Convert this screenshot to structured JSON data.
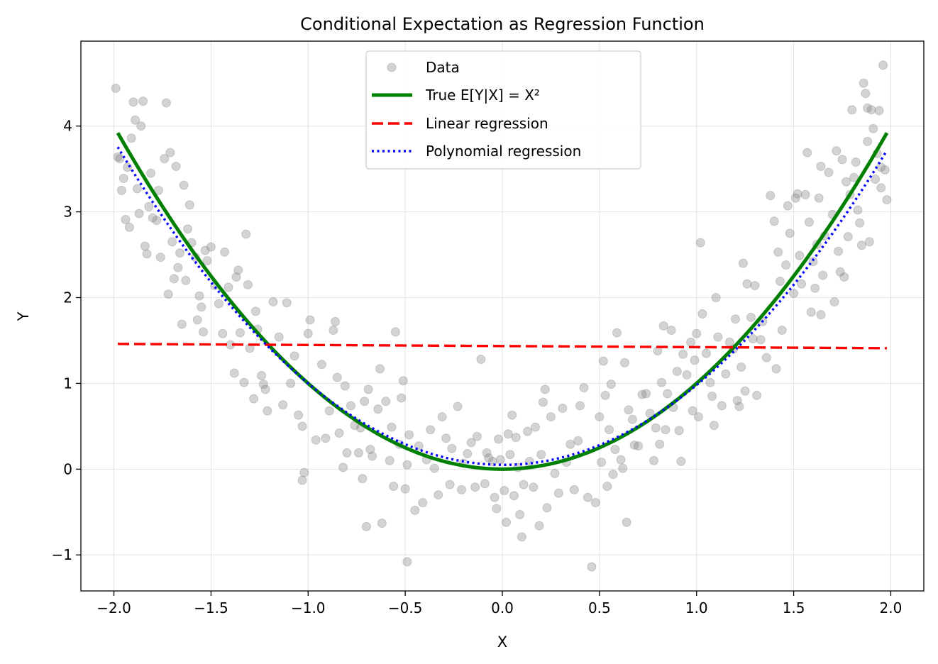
{
  "chart_data": {
    "type": "scatter",
    "title": "Conditional Expectation as Regression Function",
    "xlabel": "X",
    "ylabel": "Y",
    "xlim": [
      -2.17,
      2.17
    ],
    "ylim": [
      -1.42,
      4.99
    ],
    "xticks": [
      -2.0,
      -1.5,
      -1.0,
      -0.5,
      0.0,
      0.5,
      1.0,
      1.5,
      2.0
    ],
    "xtick_labels": [
      "−2.0",
      "−1.5",
      "−1.0",
      "−0.5",
      "0.0",
      "0.5",
      "1.0",
      "1.5",
      "2.0"
    ],
    "yticks": [
      -1,
      0,
      1,
      2,
      3,
      4
    ],
    "ytick_labels": [
      "−1",
      "0",
      "1",
      "2",
      "3",
      "4"
    ],
    "grid": true,
    "legend_position": "upper-center",
    "series": [
      {
        "name": "Data",
        "kind": "scatter",
        "color": "#808080",
        "opacity": 0.35,
        "points": [
          [
            -1.99,
            4.44
          ],
          [
            -1.98,
            3.64
          ],
          [
            -1.97,
            3.62
          ],
          [
            -1.96,
            3.25
          ],
          [
            -1.95,
            3.39
          ],
          [
            -1.94,
            2.91
          ],
          [
            -1.93,
            3.52
          ],
          [
            -1.92,
            2.82
          ],
          [
            -1.91,
            3.86
          ],
          [
            -1.9,
            4.28
          ],
          [
            -1.89,
            4.07
          ],
          [
            -1.88,
            3.27
          ],
          [
            -1.87,
            2.98
          ],
          [
            -1.86,
            4.0
          ],
          [
            -1.85,
            4.29
          ],
          [
            -1.84,
            2.6
          ],
          [
            -1.83,
            2.51
          ],
          [
            -1.82,
            3.06
          ],
          [
            -1.81,
            3.45
          ],
          [
            -1.8,
            2.93
          ],
          [
            -1.78,
            2.9
          ],
          [
            -1.77,
            3.25
          ],
          [
            -1.76,
            2.47
          ],
          [
            -1.74,
            3.62
          ],
          [
            -1.73,
            4.27
          ],
          [
            -1.72,
            2.04
          ],
          [
            -1.71,
            3.69
          ],
          [
            -1.7,
            2.65
          ],
          [
            -1.69,
            2.22
          ],
          [
            -1.68,
            3.53
          ],
          [
            -1.67,
            2.35
          ],
          [
            -1.66,
            2.52
          ],
          [
            -1.65,
            1.69
          ],
          [
            -1.64,
            3.31
          ],
          [
            -1.63,
            2.2
          ],
          [
            -1.62,
            2.8
          ],
          [
            -1.61,
            3.08
          ],
          [
            -1.6,
            2.64
          ],
          [
            -1.58,
            2.47
          ],
          [
            -1.57,
            1.74
          ],
          [
            -1.56,
            2.02
          ],
          [
            -1.55,
            1.89
          ],
          [
            -1.54,
            1.6
          ],
          [
            -1.53,
            2.55
          ],
          [
            -1.52,
            2.43
          ],
          [
            -1.5,
            2.59
          ],
          [
            -1.48,
            2.14
          ],
          [
            -1.46,
            1.93
          ],
          [
            -1.44,
            1.58
          ],
          [
            -1.43,
            2.53
          ],
          [
            -1.41,
            2.12
          ],
          [
            -1.4,
            1.45
          ],
          [
            -1.38,
            1.12
          ],
          [
            -1.37,
            2.24
          ],
          [
            -1.36,
            2.32
          ],
          [
            -1.35,
            1.59
          ],
          [
            -1.33,
            1.01
          ],
          [
            -1.32,
            2.74
          ],
          [
            -1.31,
            2.15
          ],
          [
            -1.3,
            1.41
          ],
          [
            -1.28,
            0.82
          ],
          [
            -1.27,
            1.84
          ],
          [
            -1.26,
            1.63
          ],
          [
            -1.24,
            1.09
          ],
          [
            -1.23,
            0.99
          ],
          [
            -1.22,
            0.93
          ],
          [
            -1.21,
            0.68
          ],
          [
            -1.18,
            1.95
          ],
          [
            -1.15,
            1.54
          ],
          [
            -1.13,
            0.75
          ],
          [
            -1.11,
            1.94
          ],
          [
            -1.09,
            1.0
          ],
          [
            -1.07,
            1.32
          ],
          [
            -1.05,
            0.63
          ],
          [
            -1.03,
            0.5
          ],
          [
            -1.02,
            -0.04
          ],
          [
            -1.03,
            -0.13
          ],
          [
            -1.0,
            1.58
          ],
          [
            -0.99,
            1.74
          ],
          [
            -0.96,
            0.34
          ],
          [
            -0.93,
            1.22
          ],
          [
            -0.91,
            0.36
          ],
          [
            -0.89,
            0.68
          ],
          [
            -0.87,
            1.62
          ],
          [
            -0.86,
            1.72
          ],
          [
            -0.85,
            1.07
          ],
          [
            -0.84,
            0.42
          ],
          [
            -0.82,
            0.02
          ],
          [
            -0.81,
            0.97
          ],
          [
            -0.8,
            0.19
          ],
          [
            -0.78,
            0.74
          ],
          [
            -0.76,
            0.51
          ],
          [
            -0.74,
            0.19
          ],
          [
            -0.73,
            0.48
          ],
          [
            -0.72,
            -0.11
          ],
          [
            -0.71,
            0.79
          ],
          [
            -0.7,
            -0.67
          ],
          [
            -0.69,
            0.93
          ],
          [
            -0.68,
            0.23
          ],
          [
            -0.67,
            0.15
          ],
          [
            -0.64,
            0.7
          ],
          [
            -0.63,
            1.17
          ],
          [
            -0.62,
            -0.63
          ],
          [
            -0.6,
            0.79
          ],
          [
            -0.58,
            0.1
          ],
          [
            -0.57,
            0.49
          ],
          [
            -0.56,
            -0.2
          ],
          [
            -0.55,
            1.6
          ],
          [
            -0.53,
            0.29
          ],
          [
            -0.52,
            0.83
          ],
          [
            -0.51,
            1.03
          ],
          [
            -0.5,
            -0.23
          ],
          [
            -0.49,
            0.05
          ],
          [
            -0.48,
            0.4
          ],
          [
            -0.49,
            -1.08
          ],
          [
            -0.45,
            -0.48
          ],
          [
            -0.43,
            0.27
          ],
          [
            -0.41,
            -0.39
          ],
          [
            -0.39,
            0.11
          ],
          [
            -0.37,
            0.46
          ],
          [
            -0.35,
            0.01
          ],
          [
            -0.33,
            -0.3
          ],
          [
            -0.31,
            0.61
          ],
          [
            -0.29,
            0.36
          ],
          [
            -0.27,
            -0.18
          ],
          [
            -0.26,
            0.24
          ],
          [
            -0.23,
            0.73
          ],
          [
            -0.21,
            -0.24
          ],
          [
            -0.2,
            0.07
          ],
          [
            -0.18,
            0.18
          ],
          [
            -0.16,
            0.31
          ],
          [
            -0.14,
            -0.21
          ],
          [
            -0.13,
            0.38
          ],
          [
            -0.11,
            1.28
          ],
          [
            -0.09,
            -0.17
          ],
          [
            -0.08,
            0.19
          ],
          [
            -0.07,
            0.13
          ],
          [
            -0.05,
            0.09
          ],
          [
            -0.04,
            -0.33
          ],
          [
            -0.03,
            -0.46
          ],
          [
            -0.02,
            0.35
          ],
          [
            -0.01,
            0.11
          ],
          [
            0.01,
            -0.25
          ],
          [
            0.02,
            -0.62
          ],
          [
            0.03,
            0.41
          ],
          [
            0.04,
            0.17
          ],
          [
            0.05,
            0.63
          ],
          [
            0.06,
            -0.31
          ],
          [
            0.07,
            0.37
          ],
          [
            0.08,
            0.02
          ],
          [
            0.09,
            -0.53
          ],
          [
            0.1,
            -0.79
          ],
          [
            0.11,
            -0.18
          ],
          [
            0.13,
            0.44
          ],
          [
            0.14,
            0.09
          ],
          [
            0.16,
            -0.21
          ],
          [
            0.17,
            0.49
          ],
          [
            0.19,
            -0.66
          ],
          [
            0.2,
            0.17
          ],
          [
            0.21,
            0.78
          ],
          [
            0.22,
            0.93
          ],
          [
            0.23,
            -0.45
          ],
          [
            0.25,
            0.61
          ],
          [
            0.27,
            -0.05
          ],
          [
            0.29,
            -0.28
          ],
          [
            0.31,
            0.71
          ],
          [
            0.33,
            0.08
          ],
          [
            0.35,
            0.29
          ],
          [
            0.37,
            -0.24
          ],
          [
            0.39,
            0.33
          ],
          [
            0.4,
            0.74
          ],
          [
            0.42,
            0.95
          ],
          [
            0.44,
            -0.33
          ],
          [
            0.46,
            -1.14
          ],
          [
            0.48,
            -0.39
          ],
          [
            0.5,
            0.61
          ],
          [
            0.51,
            0.08
          ],
          [
            0.52,
            1.26
          ],
          [
            0.53,
            0.86
          ],
          [
            0.54,
            -0.2
          ],
          [
            0.55,
            0.46
          ],
          [
            0.56,
            0.99
          ],
          [
            0.57,
            -0.06
          ],
          [
            0.58,
            0.23
          ],
          [
            0.59,
            1.59
          ],
          [
            0.61,
            0.11
          ],
          [
            0.62,
            0.01
          ],
          [
            0.63,
            1.24
          ],
          [
            0.64,
            -0.62
          ],
          [
            0.65,
            0.69
          ],
          [
            0.67,
            0.58
          ],
          [
            0.68,
            0.28
          ],
          [
            0.7,
            0.27
          ],
          [
            0.72,
            0.87
          ],
          [
            0.74,
            0.88
          ],
          [
            0.76,
            0.65
          ],
          [
            0.78,
            0.1
          ],
          [
            0.79,
            0.48
          ],
          [
            0.8,
            1.38
          ],
          [
            0.81,
            0.29
          ],
          [
            0.82,
            1.01
          ],
          [
            0.83,
            1.67
          ],
          [
            0.84,
            0.46
          ],
          [
            0.85,
            0.88
          ],
          [
            0.87,
            1.62
          ],
          [
            0.88,
            0.72
          ],
          [
            0.9,
            1.14
          ],
          [
            0.91,
            0.45
          ],
          [
            0.92,
            0.09
          ],
          [
            0.93,
            1.34
          ],
          [
            0.95,
            1.1
          ],
          [
            0.97,
            1.48
          ],
          [
            0.98,
            0.68
          ],
          [
            0.99,
            1.27
          ],
          [
            1.0,
            1.58
          ],
          [
            1.01,
            0.61
          ],
          [
            1.02,
            2.64
          ],
          [
            1.03,
            1.81
          ],
          [
            1.05,
            1.35
          ],
          [
            1.07,
            1.01
          ],
          [
            1.08,
            0.85
          ],
          [
            1.09,
            0.51
          ],
          [
            1.1,
            2.0
          ],
          [
            1.11,
            1.54
          ],
          [
            1.13,
            0.74
          ],
          [
            1.15,
            1.11
          ],
          [
            1.17,
            1.48
          ],
          [
            1.19,
            1.4
          ],
          [
            1.2,
            1.75
          ],
          [
            1.21,
            0.8
          ],
          [
            1.22,
            0.73
          ],
          [
            1.23,
            1.19
          ],
          [
            1.24,
            2.4
          ],
          [
            1.25,
            0.91
          ],
          [
            1.26,
            2.16
          ],
          [
            1.28,
            1.77
          ],
          [
            1.29,
            1.52
          ],
          [
            1.3,
            2.14
          ],
          [
            1.31,
            0.86
          ],
          [
            1.33,
            1.51
          ],
          [
            1.34,
            1.72
          ],
          [
            1.36,
            1.3
          ],
          [
            1.38,
            3.19
          ],
          [
            1.4,
            2.89
          ],
          [
            1.41,
            1.17
          ],
          [
            1.42,
            2.53
          ],
          [
            1.43,
            2.19
          ],
          [
            1.44,
            1.62
          ],
          [
            1.46,
            2.38
          ],
          [
            1.47,
            3.07
          ],
          [
            1.48,
            2.75
          ],
          [
            1.5,
            2.05
          ],
          [
            1.51,
            3.16
          ],
          [
            1.52,
            3.21
          ],
          [
            1.53,
            2.49
          ],
          [
            1.54,
            2.16
          ],
          [
            1.56,
            3.2
          ],
          [
            1.57,
            3.69
          ],
          [
            1.58,
            2.88
          ],
          [
            1.59,
            1.83
          ],
          [
            1.6,
            2.42
          ],
          [
            1.61,
            2.11
          ],
          [
            1.62,
            2.62
          ],
          [
            1.63,
            3.16
          ],
          [
            1.64,
            1.8
          ],
          [
            1.65,
            2.26
          ],
          [
            1.66,
            2.72
          ],
          [
            1.68,
            3.46
          ],
          [
            1.7,
            2.97
          ],
          [
            1.71,
            1.95
          ],
          [
            1.72,
            3.71
          ],
          [
            1.73,
            2.54
          ],
          [
            1.74,
            2.3
          ],
          [
            1.75,
            3.61
          ],
          [
            1.76,
            2.24
          ],
          [
            1.77,
            3.35
          ],
          [
            1.78,
            2.71
          ],
          [
            1.79,
            3.2
          ],
          [
            1.8,
            4.19
          ],
          [
            1.81,
            3.4
          ],
          [
            1.82,
            3.58
          ],
          [
            1.83,
            3.02
          ],
          [
            1.84,
            2.87
          ],
          [
            1.85,
            2.61
          ],
          [
            1.86,
            4.5
          ],
          [
            1.87,
            4.38
          ],
          [
            1.88,
            3.82
          ],
          [
            1.89,
            2.65
          ],
          [
            1.9,
            4.19
          ],
          [
            1.91,
            3.97
          ],
          [
            1.92,
            3.38
          ],
          [
            1.93,
            3.68
          ],
          [
            1.94,
            4.18
          ],
          [
            1.95,
            3.52
          ],
          [
            1.96,
            4.71
          ],
          [
            1.97,
            3.49
          ],
          [
            1.98,
            3.14
          ],
          [
            1.95,
            3.28
          ],
          [
            1.88,
            4.21
          ],
          [
            1.64,
            3.53
          ]
        ]
      },
      {
        "name": "True E[Y|X] = X²",
        "kind": "line",
        "color": "#008000",
        "style": "solid",
        "x_range": [
          -1.98,
          1.98
        ],
        "formula": "x^2"
      },
      {
        "name": "Linear regression",
        "kind": "line",
        "color": "#ff0000",
        "style": "dashed",
        "points": [
          [
            -1.98,
            1.46
          ],
          [
            1.98,
            1.41
          ]
        ]
      },
      {
        "name": "Polynomial regression",
        "kind": "line",
        "color": "#0000ff",
        "style": "dotted",
        "x_range": [
          -1.98,
          1.98
        ],
        "coefficients": [
          0.05,
          -0.01,
          0.94
        ]
      }
    ]
  }
}
